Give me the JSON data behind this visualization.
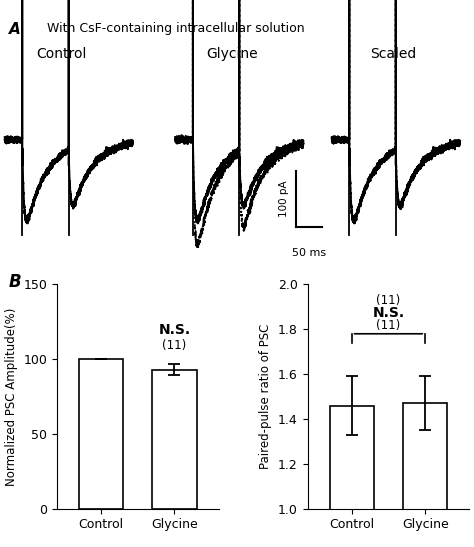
{
  "title_A": "With CsF-containing intracellular solution",
  "label_A": "A",
  "label_control": "Control",
  "label_glycine": "Glycine",
  "label_scaled": "Scaled",
  "panel_B_label": "B",
  "bar1_categories": [
    "Control",
    "Glycine"
  ],
  "bar1_values": [
    100,
    93
  ],
  "bar1_errors": [
    0.0,
    3.5
  ],
  "bar1_ylabel": "Normalized PSC Amplitude(%)",
  "bar1_ylim": [
    0,
    150
  ],
  "bar1_yticks": [
    0,
    50,
    100,
    150
  ],
  "bar2_categories": [
    "Control",
    "Glycine"
  ],
  "bar2_values": [
    1.46,
    1.47
  ],
  "bar2_errors": [
    0.13,
    0.12
  ],
  "bar2_ylabel": "Paired-pulse ratio of PSC",
  "bar2_ylim": [
    1.0,
    2.0
  ],
  "bar2_yticks": [
    1.0,
    1.2,
    1.4,
    1.6,
    1.8,
    2.0
  ],
  "ns_text": "N.S.",
  "n_text": "(11)",
  "bar_color": "#ffffff",
  "bar_edgecolor": "#000000",
  "scale_bar_label_y": "100 pA",
  "scale_bar_label_x": "50 ms",
  "background_color": "#ffffff",
  "text_color": "#000000"
}
